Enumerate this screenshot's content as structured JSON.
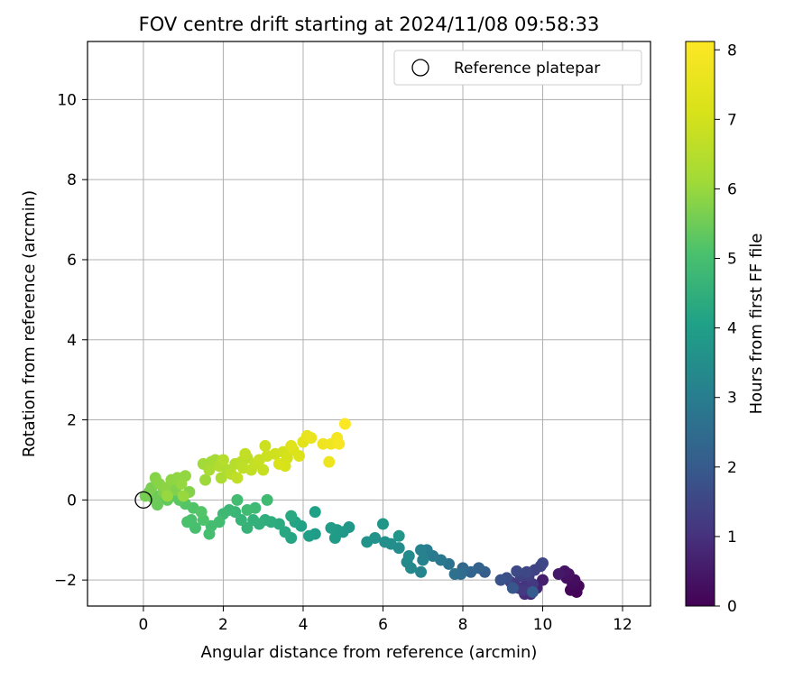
{
  "chart_data": {
    "type": "scatter",
    "title": "FOV centre drift starting at 2024/11/08 09:58:33",
    "xlabel": "Angular distance from reference (arcmin)",
    "ylabel": "Rotation from reference (arcmin)",
    "xlim": [
      -1.4,
      12.7
    ],
    "ylim": [
      -2.65,
      11.45
    ],
    "xticks": [
      0,
      2,
      4,
      6,
      8,
      10,
      12
    ],
    "yticks": [
      -2,
      0,
      2,
      4,
      6,
      8,
      10
    ],
    "grid": true,
    "legend": {
      "placement": "upper right",
      "entries": [
        "Reference platepar"
      ]
    },
    "reference_point": {
      "label": "Reference platepar",
      "x": 0,
      "y": 0,
      "marker": "open circle"
    },
    "colorbar": {
      "label": "Hours from first FF file",
      "colormap": "viridis",
      "range": [
        0,
        8.12
      ],
      "ticks": [
        0,
        1,
        2,
        3,
        4,
        5,
        6,
        7,
        8
      ]
    },
    "points": [
      {
        "x": 10.85,
        "y": -2.3,
        "t": 0.05
      },
      {
        "x": 10.7,
        "y": -2.25,
        "t": 0.1
      },
      {
        "x": 10.9,
        "y": -2.15,
        "t": 0.15
      },
      {
        "x": 10.75,
        "y": -2.1,
        "t": 0.2
      },
      {
        "x": 10.8,
        "y": -2.0,
        "t": 0.25
      },
      {
        "x": 10.6,
        "y": -1.95,
        "t": 0.3
      },
      {
        "x": 10.65,
        "y": -1.85,
        "t": 0.35
      },
      {
        "x": 10.55,
        "y": -1.78,
        "t": 0.4
      },
      {
        "x": 10.4,
        "y": -1.85,
        "t": 0.5
      },
      {
        "x": 10.0,
        "y": -2.0,
        "t": 0.6
      },
      {
        "x": 9.85,
        "y": -2.2,
        "t": 0.7
      },
      {
        "x": 9.7,
        "y": -2.35,
        "t": 0.8
      },
      {
        "x": 9.55,
        "y": -2.35,
        "t": 0.9
      },
      {
        "x": 9.4,
        "y": -2.2,
        "t": 1.0
      },
      {
        "x": 9.6,
        "y": -2.05,
        "t": 1.05
      },
      {
        "x": 9.3,
        "y": -2.1,
        "t": 1.1
      },
      {
        "x": 9.75,
        "y": -2.1,
        "t": 1.15
      },
      {
        "x": 9.5,
        "y": -2.25,
        "t": 1.2
      },
      {
        "x": 9.2,
        "y": -2.05,
        "t": 1.25
      },
      {
        "x": 9.65,
        "y": -1.9,
        "t": 1.3
      },
      {
        "x": 9.45,
        "y": -1.9,
        "t": 1.35
      },
      {
        "x": 9.8,
        "y": -1.75,
        "t": 1.4
      },
      {
        "x": 9.95,
        "y": -1.65,
        "t": 1.45
      },
      {
        "x": 10.0,
        "y": -1.58,
        "t": 1.5
      },
      {
        "x": 9.6,
        "y": -1.8,
        "t": 1.55
      },
      {
        "x": 9.35,
        "y": -1.78,
        "t": 1.6
      },
      {
        "x": 9.1,
        "y": -1.95,
        "t": 1.7
      },
      {
        "x": 8.95,
        "y": -2.0,
        "t": 1.8
      },
      {
        "x": 9.25,
        "y": -2.2,
        "t": 1.9
      },
      {
        "x": 9.75,
        "y": -2.3,
        "t": 2.0
      },
      {
        "x": 8.55,
        "y": -1.8,
        "t": 2.1
      },
      {
        "x": 8.4,
        "y": -1.7,
        "t": 2.2
      },
      {
        "x": 8.2,
        "y": -1.8,
        "t": 2.3
      },
      {
        "x": 8.0,
        "y": -1.7,
        "t": 2.4
      },
      {
        "x": 7.95,
        "y": -1.85,
        "t": 2.5
      },
      {
        "x": 7.8,
        "y": -1.85,
        "t": 2.6
      },
      {
        "x": 7.65,
        "y": -1.6,
        "t": 2.7
      },
      {
        "x": 7.45,
        "y": -1.5,
        "t": 2.8
      },
      {
        "x": 7.25,
        "y": -1.4,
        "t": 2.9
      },
      {
        "x": 7.1,
        "y": -1.25,
        "t": 3.0
      },
      {
        "x": 6.95,
        "y": -1.25,
        "t": 3.1
      },
      {
        "x": 7.0,
        "y": -1.5,
        "t": 3.15
      },
      {
        "x": 6.95,
        "y": -1.8,
        "t": 3.2
      },
      {
        "x": 6.7,
        "y": -1.7,
        "t": 3.3
      },
      {
        "x": 6.6,
        "y": -1.55,
        "t": 3.35
      },
      {
        "x": 6.65,
        "y": -1.4,
        "t": 3.4
      },
      {
        "x": 6.4,
        "y": -1.2,
        "t": 3.45
      },
      {
        "x": 6.2,
        "y": -1.1,
        "t": 3.5
      },
      {
        "x": 6.05,
        "y": -1.05,
        "t": 3.55
      },
      {
        "x": 5.8,
        "y": -0.95,
        "t": 3.6
      },
      {
        "x": 5.6,
        "y": -1.05,
        "t": 3.65
      },
      {
        "x": 6.0,
        "y": -0.6,
        "t": 3.7
      },
      {
        "x": 6.4,
        "y": -0.9,
        "t": 3.72
      },
      {
        "x": 5.15,
        "y": -0.68,
        "t": 3.75
      },
      {
        "x": 5.0,
        "y": -0.8,
        "t": 3.8
      },
      {
        "x": 4.85,
        "y": -0.75,
        "t": 3.85
      },
      {
        "x": 4.8,
        "y": -0.95,
        "t": 3.88
      },
      {
        "x": 4.7,
        "y": -0.7,
        "t": 3.9
      },
      {
        "x": 4.3,
        "y": -0.85,
        "t": 3.95
      },
      {
        "x": 4.15,
        "y": -0.9,
        "t": 4.0
      },
      {
        "x": 4.3,
        "y": -0.3,
        "t": 4.05
      },
      {
        "x": 3.95,
        "y": -0.65,
        "t": 4.1
      },
      {
        "x": 3.8,
        "y": -0.55,
        "t": 4.15
      },
      {
        "x": 3.7,
        "y": -0.95,
        "t": 4.2
      },
      {
        "x": 3.55,
        "y": -0.8,
        "t": 4.25
      },
      {
        "x": 3.7,
        "y": -0.4,
        "t": 4.3
      },
      {
        "x": 3.4,
        "y": -0.6,
        "t": 4.35
      },
      {
        "x": 3.2,
        "y": -0.55,
        "t": 4.4
      },
      {
        "x": 3.05,
        "y": -0.5,
        "t": 4.45
      },
      {
        "x": 2.9,
        "y": -0.6,
        "t": 4.5
      },
      {
        "x": 2.75,
        "y": -0.5,
        "t": 4.55
      },
      {
        "x": 2.6,
        "y": -0.7,
        "t": 4.6
      },
      {
        "x": 2.45,
        "y": -0.5,
        "t": 4.65
      },
      {
        "x": 2.3,
        "y": -0.3,
        "t": 4.7
      },
      {
        "x": 2.15,
        "y": -0.25,
        "t": 4.75
      },
      {
        "x": 2.0,
        "y": -0.35,
        "t": 4.8
      },
      {
        "x": 2.8,
        "y": -0.2,
        "t": 4.82
      },
      {
        "x": 3.1,
        "y": 0.0,
        "t": 4.85
      },
      {
        "x": 2.6,
        "y": -0.25,
        "t": 4.88
      },
      {
        "x": 2.35,
        "y": 0.0,
        "t": 4.9
      },
      {
        "x": 1.9,
        "y": -0.55,
        "t": 4.92
      },
      {
        "x": 1.7,
        "y": -0.65,
        "t": 4.95
      },
      {
        "x": 1.65,
        "y": -0.85,
        "t": 4.98
      },
      {
        "x": 1.3,
        "y": -0.7,
        "t": 5.0
      },
      {
        "x": 1.2,
        "y": -0.5,
        "t": 5.05
      },
      {
        "x": 1.1,
        "y": -0.55,
        "t": 5.08
      },
      {
        "x": 1.5,
        "y": -0.5,
        "t": 5.1
      },
      {
        "x": 1.25,
        "y": -0.2,
        "t": 5.15
      },
      {
        "x": 1.45,
        "y": -0.3,
        "t": 5.18
      },
      {
        "x": 1.05,
        "y": -0.1,
        "t": 5.2
      },
      {
        "x": 0.9,
        "y": 0.0,
        "t": 5.25
      },
      {
        "x": 0.75,
        "y": 0.1,
        "t": 5.3
      },
      {
        "x": 0.6,
        "y": 0.0,
        "t": 5.35
      },
      {
        "x": 0.4,
        "y": 0.1,
        "t": 5.4
      },
      {
        "x": 0.35,
        "y": -0.12,
        "t": 5.45
      },
      {
        "x": 0.25,
        "y": 0.05,
        "t": 5.5
      },
      {
        "x": 0.15,
        "y": 0.2,
        "t": 5.55
      },
      {
        "x": 0.05,
        "y": 0.1,
        "t": 5.6
      },
      {
        "x": 0.2,
        "y": 0.3,
        "t": 5.65
      },
      {
        "x": 0.5,
        "y": 0.2,
        "t": 5.7
      },
      {
        "x": 0.8,
        "y": 0.25,
        "t": 5.72
      },
      {
        "x": 1.15,
        "y": 0.2,
        "t": 5.75
      },
      {
        "x": 0.3,
        "y": 0.55,
        "t": 5.8
      },
      {
        "x": 0.4,
        "y": 0.4,
        "t": 5.82
      },
      {
        "x": 0.55,
        "y": 0.3,
        "t": 5.85
      },
      {
        "x": 0.7,
        "y": 0.5,
        "t": 5.88
      },
      {
        "x": 0.85,
        "y": 0.55,
        "t": 5.9
      },
      {
        "x": 1.05,
        "y": 0.6,
        "t": 5.92
      },
      {
        "x": 0.95,
        "y": 0.4,
        "t": 5.95
      },
      {
        "x": 0.6,
        "y": 0.1,
        "t": 5.98
      },
      {
        "x": 1.0,
        "y": 0.1,
        "t": 6.0
      },
      {
        "x": 1.55,
        "y": 0.5,
        "t": 6.05
      },
      {
        "x": 1.5,
        "y": 0.9,
        "t": 6.1
      },
      {
        "x": 1.7,
        "y": 0.95,
        "t": 6.15
      },
      {
        "x": 1.8,
        "y": 1.0,
        "t": 6.2
      },
      {
        "x": 1.65,
        "y": 0.75,
        "t": 6.25
      },
      {
        "x": 1.95,
        "y": 0.55,
        "t": 6.3
      },
      {
        "x": 2.1,
        "y": 0.75,
        "t": 6.35
      },
      {
        "x": 1.9,
        "y": 0.85,
        "t": 6.4
      },
      {
        "x": 2.0,
        "y": 1.0,
        "t": 6.45
      },
      {
        "x": 2.3,
        "y": 0.9,
        "t": 6.5
      },
      {
        "x": 2.2,
        "y": 0.65,
        "t": 6.55
      },
      {
        "x": 2.45,
        "y": 0.95,
        "t": 6.6
      },
      {
        "x": 2.6,
        "y": 1.05,
        "t": 6.62
      },
      {
        "x": 2.5,
        "y": 0.8,
        "t": 6.65
      },
      {
        "x": 2.35,
        "y": 0.55,
        "t": 6.68
      },
      {
        "x": 2.7,
        "y": 0.75,
        "t": 6.7
      },
      {
        "x": 2.55,
        "y": 1.15,
        "t": 6.72
      },
      {
        "x": 2.8,
        "y": 0.9,
        "t": 6.75
      },
      {
        "x": 3.0,
        "y": 0.75,
        "t": 6.78
      },
      {
        "x": 2.9,
        "y": 1.0,
        "t": 6.8
      },
      {
        "x": 3.1,
        "y": 1.1,
        "t": 6.85
      },
      {
        "x": 3.05,
        "y": 1.35,
        "t": 6.9
      },
      {
        "x": 3.3,
        "y": 1.15,
        "t": 6.95
      },
      {
        "x": 3.5,
        "y": 1.2,
        "t": 7.0
      },
      {
        "x": 3.6,
        "y": 1.05,
        "t": 7.05
      },
      {
        "x": 3.55,
        "y": 0.85,
        "t": 7.1
      },
      {
        "x": 3.4,
        "y": 0.9,
        "t": 7.15
      },
      {
        "x": 3.75,
        "y": 1.25,
        "t": 7.2
      },
      {
        "x": 3.9,
        "y": 1.1,
        "t": 7.25
      },
      {
        "x": 3.7,
        "y": 1.35,
        "t": 7.3
      },
      {
        "x": 4.0,
        "y": 1.45,
        "t": 7.4
      },
      {
        "x": 4.1,
        "y": 1.6,
        "t": 7.5
      },
      {
        "x": 4.2,
        "y": 1.55,
        "t": 7.6
      },
      {
        "x": 4.65,
        "y": 0.95,
        "t": 7.65
      },
      {
        "x": 4.5,
        "y": 1.4,
        "t": 7.7
      },
      {
        "x": 4.7,
        "y": 1.4,
        "t": 7.75
      },
      {
        "x": 4.85,
        "y": 1.55,
        "t": 7.85
      },
      {
        "x": 4.9,
        "y": 1.4,
        "t": 7.95
      },
      {
        "x": 5.05,
        "y": 1.9,
        "t": 8.1
      }
    ]
  }
}
